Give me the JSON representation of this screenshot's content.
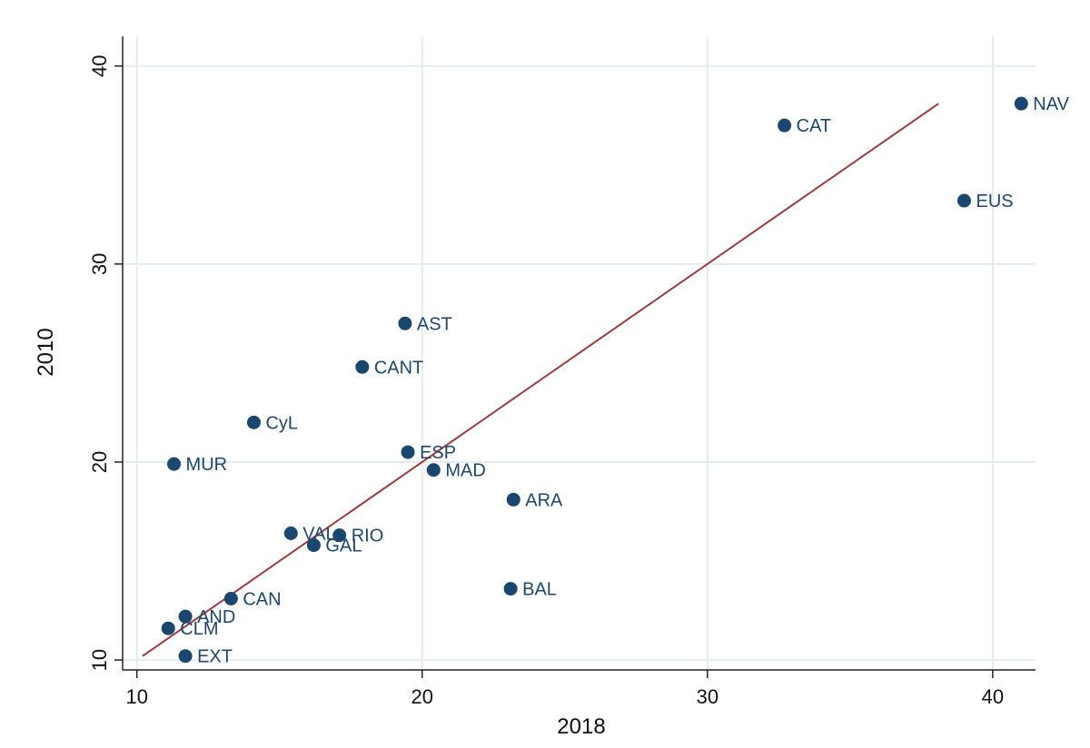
{
  "chart_data": {
    "type": "scatter",
    "title": "",
    "xlabel": "2018",
    "ylabel": "2010",
    "xlim": [
      9.5,
      41.5
    ],
    "ylim": [
      9.5,
      41.5
    ],
    "x_ticks": [
      "10",
      "20",
      "30",
      "40"
    ],
    "y_ticks": [
      "10",
      "20",
      "30",
      "40"
    ],
    "grid": true,
    "legend": "none",
    "colors": {
      "point": "#1a476f",
      "fit_line": "#a03a3a",
      "grid": "#e4ecef",
      "axis": "#222222"
    },
    "points": [
      {
        "label": "NAV",
        "x": 41.0,
        "y": 38.1
      },
      {
        "label": "CAT",
        "x": 32.7,
        "y": 37.0
      },
      {
        "label": "EUS",
        "x": 39.0,
        "y": 33.2
      },
      {
        "label": "AST",
        "x": 19.4,
        "y": 27.0
      },
      {
        "label": "CANT",
        "x": 17.9,
        "y": 24.8
      },
      {
        "label": "CyL",
        "x": 14.1,
        "y": 22.0
      },
      {
        "label": "ESP",
        "x": 19.5,
        "y": 20.5
      },
      {
        "label": "MUR",
        "x": 11.3,
        "y": 19.9
      },
      {
        "label": "MAD",
        "x": 20.4,
        "y": 19.6
      },
      {
        "label": "ARA",
        "x": 23.2,
        "y": 18.1
      },
      {
        "label": "VAL",
        "x": 15.4,
        "y": 16.4
      },
      {
        "label": "RIO",
        "x": 17.1,
        "y": 16.3
      },
      {
        "label": "GAL",
        "x": 16.2,
        "y": 15.8
      },
      {
        "label": "BAL",
        "x": 23.1,
        "y": 13.6
      },
      {
        "label": "CAN",
        "x": 13.3,
        "y": 13.1
      },
      {
        "label": "AND",
        "x": 11.7,
        "y": 12.2
      },
      {
        "label": "CLM",
        "x": 11.1,
        "y": 11.6
      },
      {
        "label": "EXT",
        "x": 11.7,
        "y": 10.2
      }
    ],
    "fit_line": {
      "x": [
        10.2,
        38.1
      ],
      "y": [
        10.2,
        38.1
      ]
    }
  }
}
